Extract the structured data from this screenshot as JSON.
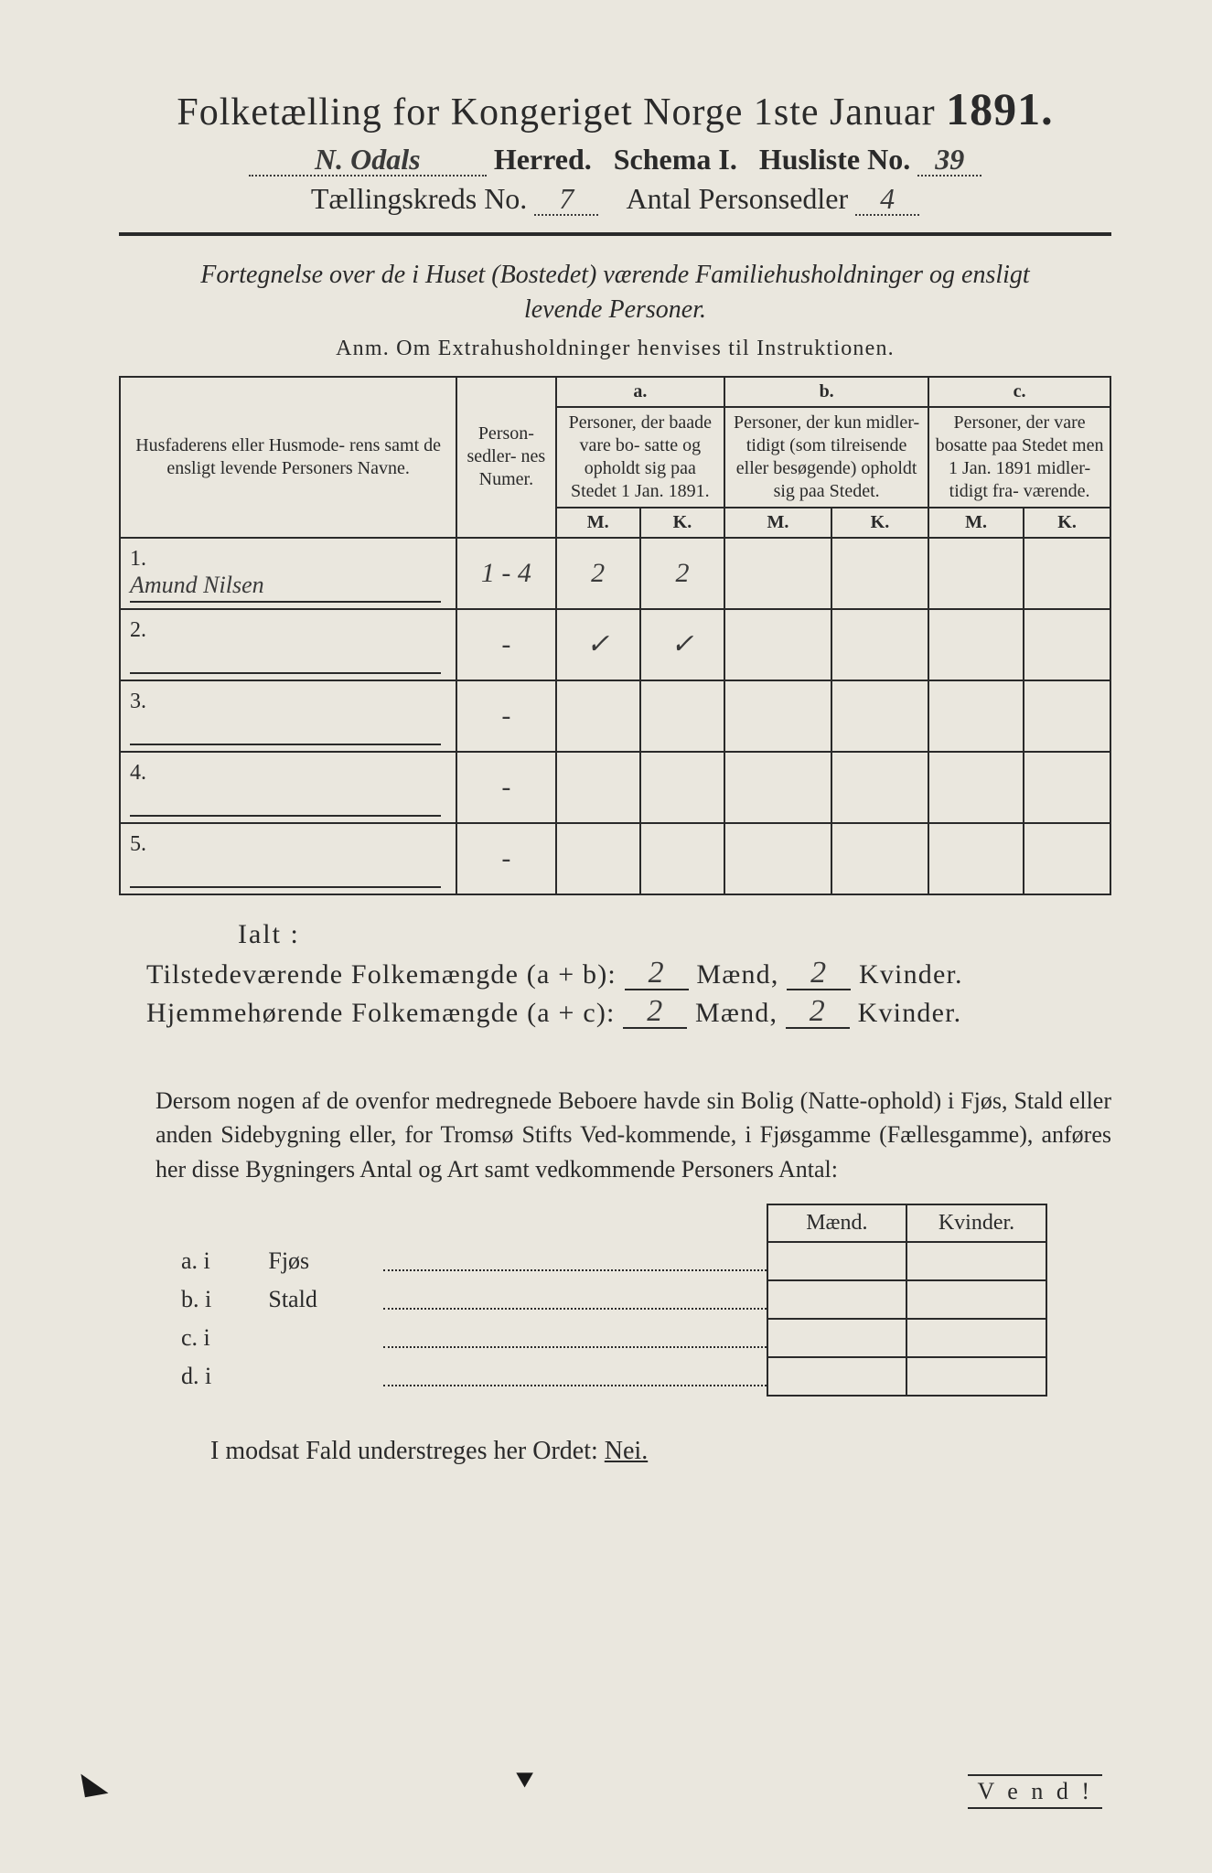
{
  "header": {
    "title_pre": "Folketælling for Kongeriget Norge 1ste Januar",
    "title_year": "1891.",
    "herred_hand": "N. Odals",
    "herred_label": "Herred.",
    "schema_label": "Schema I.",
    "husliste_label": "Husliste No.",
    "husliste_no": "39",
    "kreds_label": "Tællingskreds No.",
    "kreds_no": "7",
    "antal_label": "Antal Personsedler",
    "antal_val": "4"
  },
  "fortegnelse": {
    "line1": "Fortegnelse over de i Huset (Bostedet) værende Familiehusholdninger og ensligt",
    "line2": "levende Personer.",
    "anm": "Anm.   Om Extrahusholdninger henvises til Instruktionen."
  },
  "table": {
    "col_navne": "Husfaderens eller Husmode-\nrens samt de ensligt levende\nPersoners Navne.",
    "col_numer": "Person-\nsedler-\nnes\nNumer.",
    "abc_a": "a.",
    "abc_b": "b.",
    "abc_c": "c.",
    "col_a": "Personer, der\nbaade vare bo-\nsatte og opholdt\nsig paa Stedet\n1 Jan. 1891.",
    "col_b": "Personer, der\nkun midler-\ntidigt (som\ntilreisende\neller\nbesøgende)\nopholdt sig\npaa Stedet.",
    "col_c": "Personer, der\nvare bosatte\npaa Stedet\nmen 1 Jan.\n1891 midler-\ntidigt fra-\nværende.",
    "mk_m": "M.",
    "mk_k": "K.",
    "rows": [
      {
        "n": "1.",
        "name": "Amund Nilsen",
        "numer": "1 - 4",
        "a_m": "2",
        "a_k": "2",
        "b_m": "",
        "b_k": "",
        "c_m": "",
        "c_k": ""
      },
      {
        "n": "2.",
        "name": "",
        "numer": "-",
        "a_m": "✓",
        "a_k": "✓",
        "b_m": "",
        "b_k": "",
        "c_m": "",
        "c_k": ""
      },
      {
        "n": "3.",
        "name": "",
        "numer": "-",
        "a_m": "",
        "a_k": "",
        "b_m": "",
        "b_k": "",
        "c_m": "",
        "c_k": ""
      },
      {
        "n": "4.",
        "name": "",
        "numer": "-",
        "a_m": "",
        "a_k": "",
        "b_m": "",
        "b_k": "",
        "c_m": "",
        "c_k": ""
      },
      {
        "n": "5.",
        "name": "",
        "numer": "-",
        "a_m": "",
        "a_k": "",
        "b_m": "",
        "b_k": "",
        "c_m": "",
        "c_k": ""
      }
    ]
  },
  "ialt": {
    "ialt": "Ialt :",
    "line1_label": "Tilstedeværende Folkemængde (a + b):",
    "line2_label": "Hjemmehørende Folkemængde (a + c):",
    "maend": "Mænd,",
    "kvinder": "Kvinder.",
    "v1_m": "2",
    "v1_k": "2",
    "v2_m": "2",
    "v2_k": "2"
  },
  "bolig": {
    "para": "Dersom nogen af de ovenfor medregnede Beboere havde sin Bolig (Natte-ophold) i Fjøs, Stald eller anden Sidebygning eller, for Tromsø Stifts Ved-kommende, i Fjøsgamme (Fællesgamme), anføres her disse Bygningers Antal og Art samt vedkommende Personers Antal:",
    "hd_m": "Mænd.",
    "hd_k": "Kvinder.",
    "rows": [
      {
        "k": "a.  i",
        "t": "Fjøs"
      },
      {
        "k": "b.  i",
        "t": "Stald"
      },
      {
        "k": "c.  i",
        "t": ""
      },
      {
        "k": "d.  i",
        "t": ""
      }
    ]
  },
  "nei": {
    "pre": "I modsat Fald understreges her Ordet:",
    "nei": "Nei."
  },
  "vend": "V e n d !"
}
